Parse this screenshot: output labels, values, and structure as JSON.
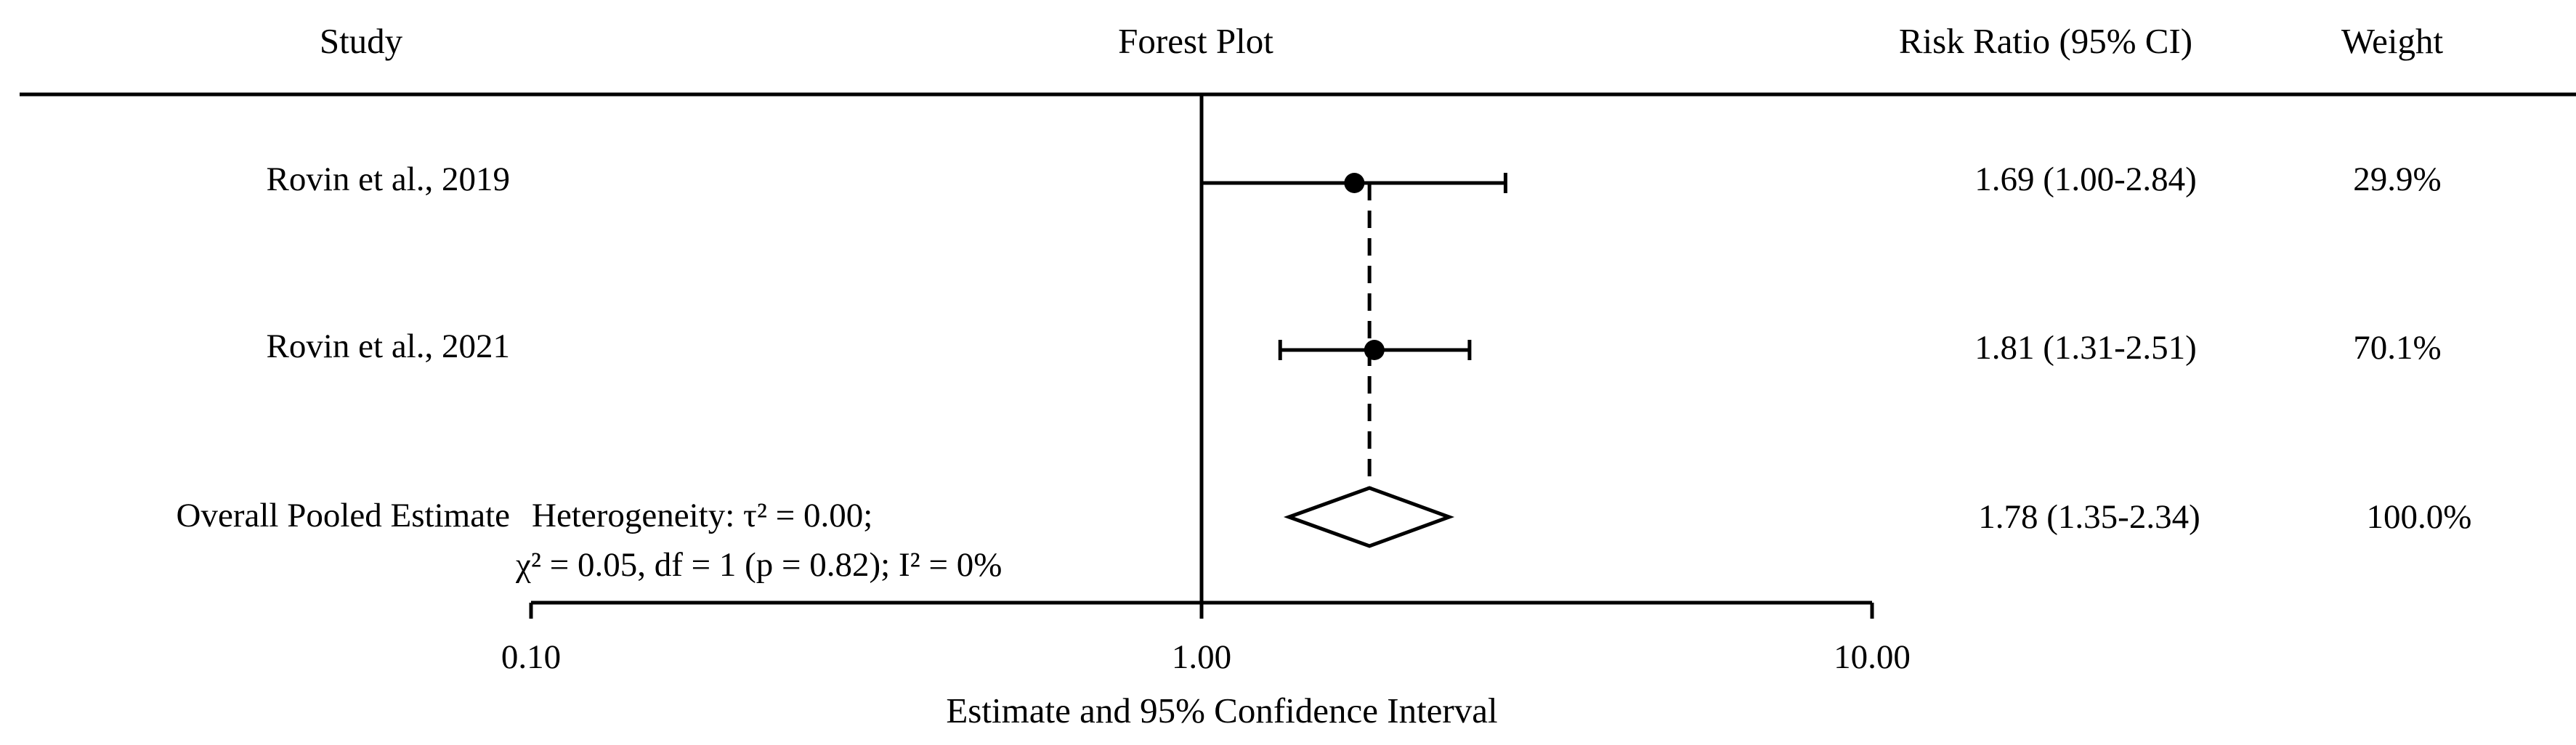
{
  "headers": {
    "study": "Study",
    "plot": "Forest Plot",
    "effect": "Risk Ratio (95% CI)",
    "weight": "Weight"
  },
  "x_axis_label": "Estimate and 95% Confidence Interval",
  "heterogeneity": {
    "line1": "Heterogeneity: τ² = 0.00;",
    "line2": "χ² = 0.05, df = 1 (p = 0.82); I² = 0%"
  },
  "chart_data": {
    "type": "forest",
    "x_scale": "log",
    "xlim": [
      0.1,
      10
    ],
    "ticks": [
      {
        "value": 0.1,
        "label": "0.10"
      },
      {
        "value": 1,
        "label": "1.00"
      },
      {
        "value": 10,
        "label": "10.00"
      }
    ],
    "reference_line": 1,
    "studies": [
      {
        "label": "Rovin et al., 2019",
        "estimate": 1.69,
        "ci_low": 1.0,
        "ci_high": 2.84,
        "ci_text": "1.69 (1.00-2.84)",
        "weight": "29.9%"
      },
      {
        "label": "Rovin et al., 2021",
        "estimate": 1.81,
        "ci_low": 1.31,
        "ci_high": 2.51,
        "ci_text": "1.81 (1.31-2.51)",
        "weight": "70.1%"
      }
    ],
    "pooled": {
      "label": "Overall Pooled Estimate",
      "estimate": 1.78,
      "ci_low": 1.35,
      "ci_high": 2.34,
      "ci_text": "1.78 (1.35-2.34)",
      "weight": "100.0%"
    }
  }
}
